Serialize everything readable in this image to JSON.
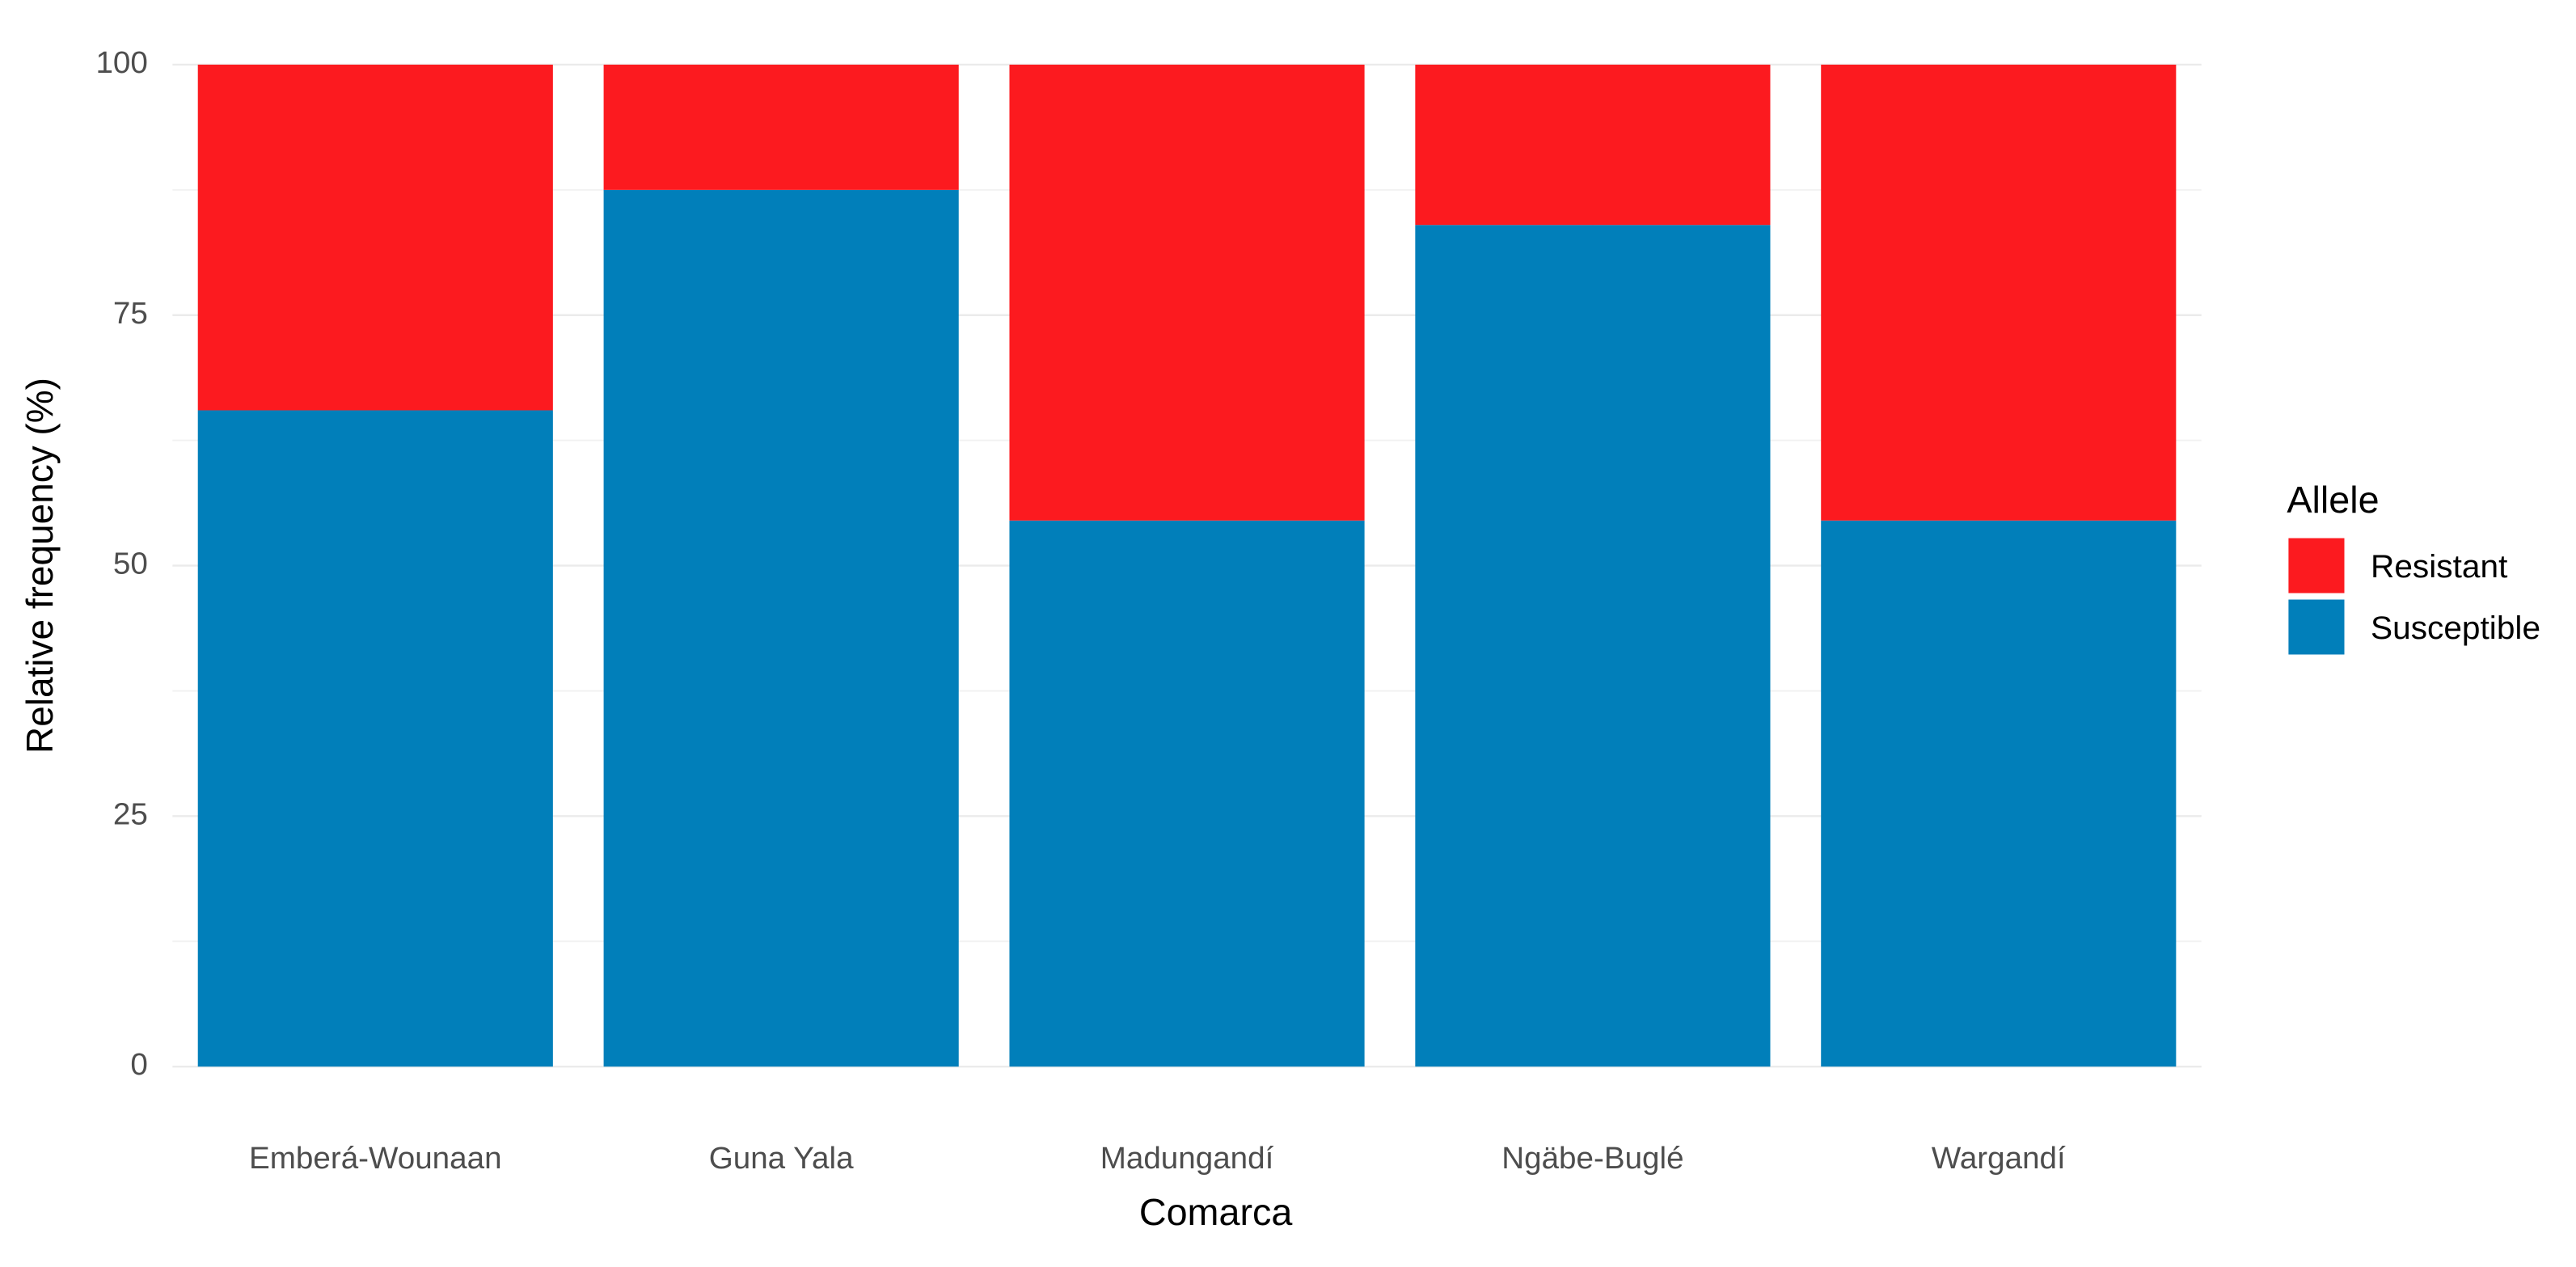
{
  "chart_data": {
    "type": "stacked_bar",
    "x_label": "Comarca",
    "y_label": "Relative frequency (%)",
    "legend_title": "Allele",
    "legend_position": "right",
    "categories": [
      "Emberá-Wounaan",
      "Guna Yala",
      "Madungandí",
      "Ngäbe-Buglé",
      "Wargandí"
    ],
    "series": [
      {
        "name": "Resistant",
        "color": "#fc1a1f",
        "values": [
          34.5,
          12.5,
          45.5,
          16,
          45.5
        ]
      },
      {
        "name": "Susceptible",
        "color": "#017fba",
        "values": [
          65.5,
          87.5,
          54.5,
          84,
          54.5
        ]
      }
    ],
    "ylim": [
      0,
      100
    ],
    "yticks": [
      0,
      25,
      50,
      75,
      100
    ],
    "grid": true
  }
}
